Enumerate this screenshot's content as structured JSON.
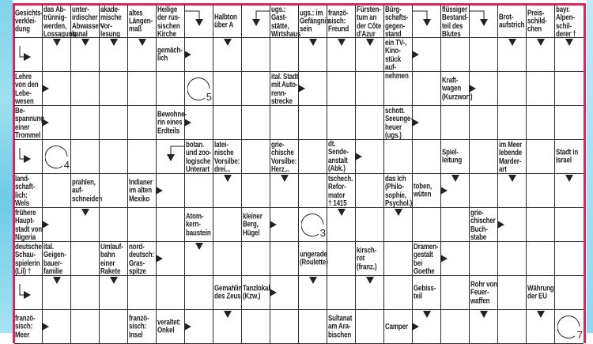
{
  "colors": {
    "frame": "#e0245e",
    "grid": "#2a2a2a",
    "background_strip": "#7fd3ea"
  },
  "grid": {
    "columns": 20,
    "rows": 10
  },
  "clues": [
    {
      "r": 0,
      "c": 0,
      "text": "Gesichts-\nverklei-\ndung"
    },
    {
      "r": 0,
      "c": 1,
      "text": "das Ab-\ntrünnig-\nwerden,\nLossagung"
    },
    {
      "r": 0,
      "c": 2,
      "text": "unter-\nirdischer\nAbwasser-\nkanal"
    },
    {
      "r": 0,
      "c": 3,
      "text": "akade-\nmische\nVor-\nlesung"
    },
    {
      "r": 0,
      "c": 4,
      "text": "altes\nLängen-\nmaß"
    },
    {
      "r": 0,
      "c": 5,
      "text": "Heilige\nder rus-\nsischen\nKirche"
    },
    {
      "r": 0,
      "c": 7,
      "text": "Halbton\nüber A"
    },
    {
      "r": 0,
      "c": 9,
      "text": "ugs.:\nGast-\nstätte,\nWirtshaus"
    },
    {
      "r": 0,
      "c": 10,
      "text": "ugs.: im\nGefängnis\nsein"
    },
    {
      "r": 0,
      "c": 11,
      "text": "franzö-\nsisch:\nFreund"
    },
    {
      "r": 0,
      "c": 12,
      "text": "Fürsten-\ntum an\nder Côte\nd'Azur"
    },
    {
      "r": 0,
      "c": 13,
      "text": "Bürg-\nschafts-\ngegen-\nstand"
    },
    {
      "r": 0,
      "c": 15,
      "text": "flüssiger\nBestand-\nteil des\nBlutes"
    },
    {
      "r": 0,
      "c": 17,
      "text": "Brot-\naufstrich"
    },
    {
      "r": 0,
      "c": 18,
      "text": "Preis-\nschild-\nchen"
    },
    {
      "r": 0,
      "c": 19,
      "text": "bayr.\nAlpen-\nschil-\nderer †"
    },
    {
      "r": 1,
      "c": 5,
      "text": "gemäch-\nlich",
      "arrow": "right"
    },
    {
      "r": 1,
      "c": 13,
      "text": "ein TV-,\nKino-\nstück auf-\nnehmen",
      "arrow": "right"
    },
    {
      "r": 2,
      "c": 0,
      "text": "Lehre\nvon den\nLebe-\nwesen",
      "arrow": "right"
    },
    {
      "r": 2,
      "c": 9,
      "text": "ital. Stadt\nmit Auto-\nrenn-\nstrecke",
      "arrow": "right"
    },
    {
      "r": 2,
      "c": 15,
      "text": "Kraft-\nwagen\n(Kurzwort)",
      "arrow": "right"
    },
    {
      "r": 3,
      "c": 0,
      "text": "Be-\nspannung\neiner\nTrommel",
      "arrow": "right"
    },
    {
      "r": 3,
      "c": 5,
      "text": "Bewohne-\nrin eines\nErdteils",
      "arrow": "right"
    },
    {
      "r": 3,
      "c": 13,
      "text": "schott.\nSeeunge-\nheuer\n(ugs.)",
      "arrow": "right"
    },
    {
      "r": 4,
      "c": 6,
      "text": "botan.\nund zoo-\nlogische\nUnterart"
    },
    {
      "r": 4,
      "c": 7,
      "text": "latei-\nnische\nVorsilbe:\ndrei..."
    },
    {
      "r": 4,
      "c": 9,
      "text": "grie-\nchische\nVorsilbe:\nHerz..."
    },
    {
      "r": 4,
      "c": 11,
      "text": "dt. Sende-\nanstalt\n(Abk.)",
      "arrow": "right"
    },
    {
      "r": 4,
      "c": 15,
      "text": "Spiel-\nleitung"
    },
    {
      "r": 4,
      "c": 17,
      "text": "im Meer\nlebende\nMarder-\nart"
    },
    {
      "r": 4,
      "c": 19,
      "text": "Stadt in\nIsrael"
    },
    {
      "r": 5,
      "c": 0,
      "text": "land-\nschaft-\nlich:\nWels"
    },
    {
      "r": 5,
      "c": 2,
      "text": "prahlen,\nauf-\nschneiden"
    },
    {
      "r": 5,
      "c": 4,
      "text": "Indianer\nim alten\nMexiko",
      "arrow": "right"
    },
    {
      "r": 5,
      "c": 11,
      "text": "tschech.\nRefor-\nmator\n† 1415"
    },
    {
      "r": 5,
      "c": 13,
      "text": "das Ich\n(Philo-\nsophie,\nPsychol.)"
    },
    {
      "r": 5,
      "c": 14,
      "text": "toben,\nwüten",
      "arrow": "right"
    },
    {
      "r": 6,
      "c": 0,
      "text": "frühere\nHaupt-\nstadt von\nNigeria",
      "arrow": "right"
    },
    {
      "r": 6,
      "c": 6,
      "text": "Atom-\nkern-\nbaustein"
    },
    {
      "r": 6,
      "c": 8,
      "text": "kleiner\nBerg,\nHügel",
      "arrow": "right"
    },
    {
      "r": 6,
      "c": 16,
      "text": "grie-\nchischer\nBuch-\nstabe",
      "arrow": "right"
    },
    {
      "r": 7,
      "c": 0,
      "text": "deutsche\nSchau-\nspielerin\n(Lil) †"
    },
    {
      "r": 7,
      "c": 1,
      "text": "ital.\nGeigen-\nbauer-\nfamilie"
    },
    {
      "r": 7,
      "c": 3,
      "text": "Umlauf-\nbahn\neiner\nRakete"
    },
    {
      "r": 7,
      "c": 4,
      "text": "nord-\ndeutsch:\nGras-\nspitze",
      "arrow": "right"
    },
    {
      "r": 7,
      "c": 10,
      "text": "ungerade\n(Roulette)"
    },
    {
      "r": 7,
      "c": 12,
      "text": "kirsch-\nrot\n(franz.)"
    },
    {
      "r": 7,
      "c": 14,
      "text": "Dramen-\ngestalt\nbei\nGoethe",
      "arrow": "right"
    },
    {
      "r": 8,
      "c": 7,
      "text": "Gemahlin\ndes Zeus"
    },
    {
      "r": 8,
      "c": 8,
      "text": "Tanzlokal\n(Kzw.)",
      "arrow": "right"
    },
    {
      "r": 8,
      "c": 14,
      "text": "Gebiss-\nteil"
    },
    {
      "r": 8,
      "c": 16,
      "text": "Rohr von\nFeuer-\nwaffen"
    },
    {
      "r": 8,
      "c": 18,
      "text": "Währung\nder EU"
    },
    {
      "r": 9,
      "c": 0,
      "text": "franzö-\nsisch:\nMeer",
      "arrow": "right"
    },
    {
      "r": 9,
      "c": 4,
      "text": "franzö-\nsisch:\nInsel"
    },
    {
      "r": 9,
      "c": 5,
      "text": "veraltet:\nOnkel",
      "arrow": "right"
    },
    {
      "r": 9,
      "c": 11,
      "text": "Sultanat\nam Ara-\nbischen"
    },
    {
      "r": 9,
      "c": 13,
      "text": "Camper",
      "arrow": "right"
    }
  ],
  "markers": [
    {
      "r": 0,
      "c": 6,
      "type": "bend-from-left-down"
    },
    {
      "r": 0,
      "c": 8,
      "type": "bend-from-right-down"
    },
    {
      "r": 0,
      "c": 14,
      "type": "bend-from-left-down"
    },
    {
      "r": 0,
      "c": 16,
      "type": "bend-from-left-down"
    },
    {
      "r": 1,
      "c": 0,
      "type": "bend-from-top-right"
    },
    {
      "r": 1,
      "c": 1,
      "type": "down"
    },
    {
      "r": 1,
      "c": 2,
      "type": "down"
    },
    {
      "r": 1,
      "c": 3,
      "type": "down"
    },
    {
      "r": 1,
      "c": 4,
      "type": "down"
    },
    {
      "r": 1,
      "c": 7,
      "type": "down"
    },
    {
      "r": 1,
      "c": 10,
      "type": "down"
    },
    {
      "r": 1,
      "c": 11,
      "type": "down"
    },
    {
      "r": 1,
      "c": 12,
      "type": "down"
    },
    {
      "r": 1,
      "c": 17,
      "type": "down"
    },
    {
      "r": 1,
      "c": 18,
      "type": "down"
    },
    {
      "r": 1,
      "c": 19,
      "type": "down"
    },
    {
      "r": 4,
      "c": 0,
      "type": "bend-from-top-right"
    },
    {
      "r": 4,
      "c": 5,
      "type": "bend-from-right-down"
    },
    {
      "r": 5,
      "c": 7,
      "type": "down"
    },
    {
      "r": 5,
      "c": 9,
      "type": "down"
    },
    {
      "r": 5,
      "c": 15,
      "type": "down"
    },
    {
      "r": 5,
      "c": 17,
      "type": "down"
    },
    {
      "r": 5,
      "c": 19,
      "type": "down"
    },
    {
      "r": 6,
      "c": 2,
      "type": "down"
    },
    {
      "r": 6,
      "c": 11,
      "type": "down"
    },
    {
      "r": 6,
      "c": 13,
      "type": "down"
    },
    {
      "r": 7,
      "c": 6,
      "type": "down"
    },
    {
      "r": 8,
      "c": 0,
      "type": "bend-from-top-right"
    },
    {
      "r": 8,
      "c": 1,
      "type": "down"
    },
    {
      "r": 8,
      "c": 3,
      "type": "down"
    },
    {
      "r": 8,
      "c": 10,
      "type": "down"
    },
    {
      "r": 8,
      "c": 12,
      "type": "down"
    },
    {
      "r": 9,
      "c": 7,
      "type": "down"
    },
    {
      "r": 9,
      "c": 14,
      "type": "down"
    },
    {
      "r": 9,
      "c": 16,
      "type": "down"
    },
    {
      "r": 9,
      "c": 18,
      "type": "down"
    }
  ],
  "solution_circles": [
    {
      "r": 2,
      "c": 6,
      "number": "5"
    },
    {
      "r": 4,
      "c": 1,
      "number": "4"
    },
    {
      "r": 6,
      "c": 10,
      "number": "3"
    },
    {
      "r": 9,
      "c": 19,
      "number": "7"
    }
  ]
}
